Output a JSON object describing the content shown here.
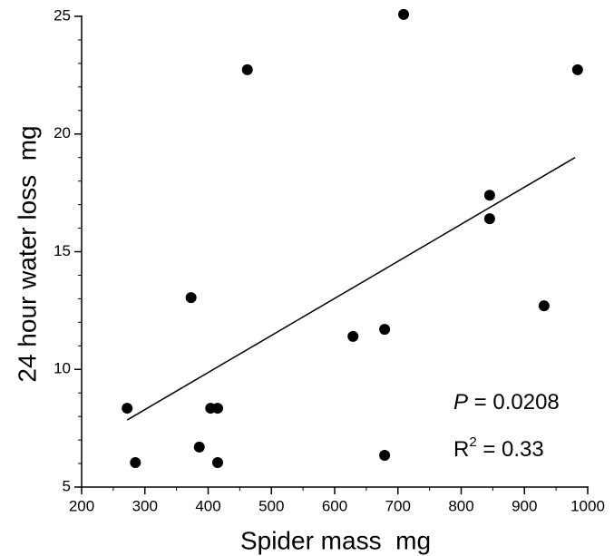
{
  "chart_data": {
    "type": "scatter",
    "x_label": "Spider mass  mg",
    "y_label": "24 hour water loss  mg",
    "x": [
      272,
      285,
      373,
      386,
      404,
      415,
      415,
      462,
      629,
      679,
      679,
      709,
      845,
      845,
      931,
      984
    ],
    "values": [
      8.35,
      6.04,
      13.05,
      6.7,
      8.35,
      8.35,
      6.04,
      22.73,
      11.4,
      6.35,
      11.7,
      25.08,
      17.4,
      16.4,
      12.7,
      22.73
    ],
    "color": "#000000",
    "fit_line": {
      "x": [
        272,
        980
      ],
      "y": [
        7.85,
        19.0
      ]
    },
    "xlim": [
      200,
      1000
    ],
    "ylim": [
      5,
      25
    ],
    "xticks": [
      200,
      300,
      400,
      500,
      600,
      700,
      800,
      900,
      1000
    ],
    "yticks": [
      5,
      10,
      15,
      20,
      25
    ],
    "x_minor_ticks": [
      250,
      350,
      450,
      550,
      650,
      750,
      850,
      950
    ],
    "y_minor_ticks": [
      6,
      7,
      8,
      9,
      11,
      12,
      13,
      14,
      16,
      17,
      18,
      19,
      21,
      22,
      23,
      24
    ],
    "annotations": [
      {
        "symbol": "P",
        "text": " = 0.0208"
      },
      {
        "symbol": "R",
        "superscript": "2",
        "text": " = 0.33"
      }
    ]
  }
}
